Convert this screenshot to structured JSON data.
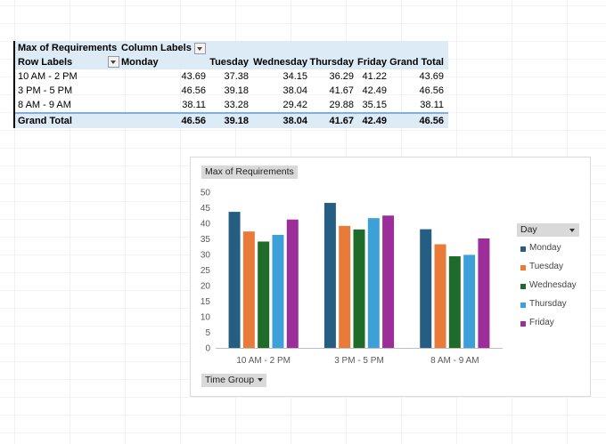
{
  "pivot": {
    "corner": "Max of Requirements",
    "column_labels": "Column Labels",
    "row_labels": "Row Labels",
    "columns": [
      "Monday",
      "Tuesday",
      "Wednesday",
      "Thursday",
      "Friday",
      "Grand Total"
    ],
    "rows": [
      {
        "label": "10 AM - 2 PM",
        "values": [
          "43.69",
          "37.38",
          "34.15",
          "36.29",
          "41.22",
          "43.69"
        ]
      },
      {
        "label": "3 PM - 5 PM",
        "values": [
          "46.56",
          "39.18",
          "38.04",
          "41.67",
          "42.49",
          "46.56"
        ]
      },
      {
        "label": "8 AM - 9 AM",
        "values": [
          "38.11",
          "33.28",
          "29.42",
          "29.88",
          "35.15",
          "38.11"
        ]
      }
    ],
    "total": {
      "label": "Grand Total",
      "values": [
        "46.56",
        "39.18",
        "38.04",
        "41.67",
        "42.49",
        "46.56"
      ]
    }
  },
  "chart_buttons": {
    "values_field": "Max of Requirements",
    "legend_field": "Day",
    "axis_field": "Time Group"
  },
  "chart_data": {
    "type": "bar",
    "categories": [
      "10 AM - 2 PM",
      "3 PM - 5 PM",
      "8 AM - 9 AM"
    ],
    "series": [
      {
        "name": "Monday",
        "values": [
          43.69,
          46.56,
          38.11
        ],
        "color": "#255e82"
      },
      {
        "name": "Tuesday",
        "values": [
          37.38,
          39.18,
          33.28
        ],
        "color": "#e97b3a"
      },
      {
        "name": "Wednesday",
        "values": [
          34.15,
          38.04,
          29.42
        ],
        "color": "#1e6b2a"
      },
      {
        "name": "Thursday",
        "values": [
          36.29,
          41.67,
          29.88
        ],
        "color": "#3ea0d8"
      },
      {
        "name": "Friday",
        "values": [
          41.22,
          42.49,
          35.15
        ],
        "color": "#9b2e98"
      }
    ],
    "ylim": [
      0,
      50
    ],
    "yticks": [
      0,
      5,
      10,
      15,
      20,
      25,
      30,
      35,
      40,
      45,
      50
    ],
    "grid": false,
    "legend_position": "right"
  }
}
